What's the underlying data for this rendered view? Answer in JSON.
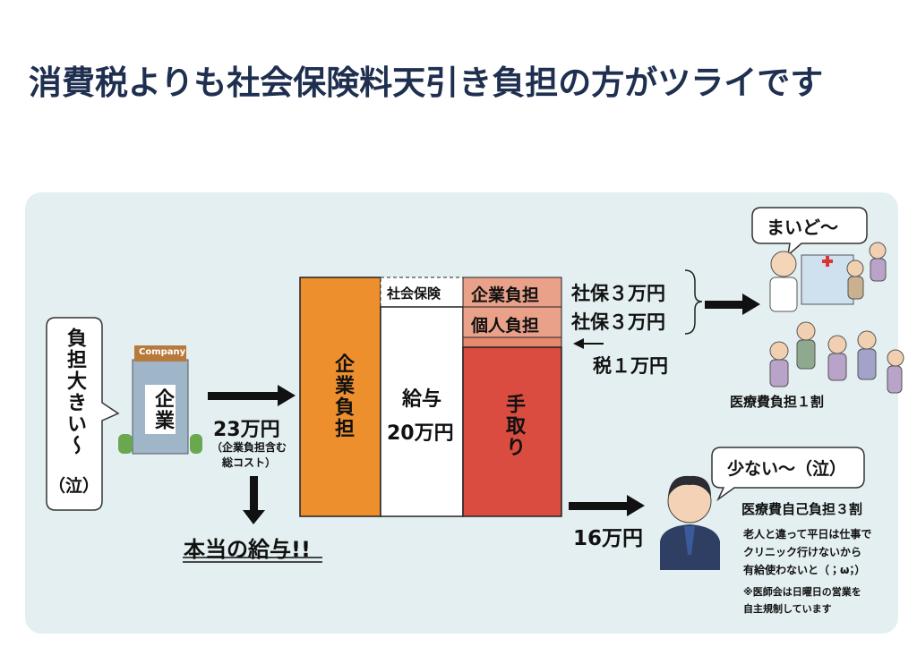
{
  "title": "消費税よりも社会保険料天引き負担の方がツライです",
  "left_bubble": {
    "text": "負担大きい〜",
    "sub": "（泣）"
  },
  "company": {
    "sign": "Company",
    "label": "企業"
  },
  "total_cost": {
    "amount": "23万円",
    "note_1": "（企業負担含む",
    "note_2": "総コスト）"
  },
  "real_salary": "本当の給与!!",
  "bars": {
    "employer": "企業負担",
    "social_insurance": "社会保険",
    "salary_label": "給与",
    "salary_amount": "20万円",
    "employer_share": "企業負担",
    "employee_share": "個人負担",
    "take_home": "手取り"
  },
  "deductions": [
    "社保３万円",
    "社保３万円",
    "税１万円"
  ],
  "elderly": {
    "bubble": "まいど〜",
    "caption": "医療費負担１割"
  },
  "worker": {
    "take_home": "16万円",
    "bubble": "少ない〜（泣）",
    "heading": "医療費自己負担３割",
    "lines": [
      "老人と違って平日は仕事で",
      "クリニック行けないから",
      "有給使わないと（；ω；）"
    ],
    "notes": [
      "※医師会は日曜日の営業を",
      "自主規制しています"
    ]
  }
}
